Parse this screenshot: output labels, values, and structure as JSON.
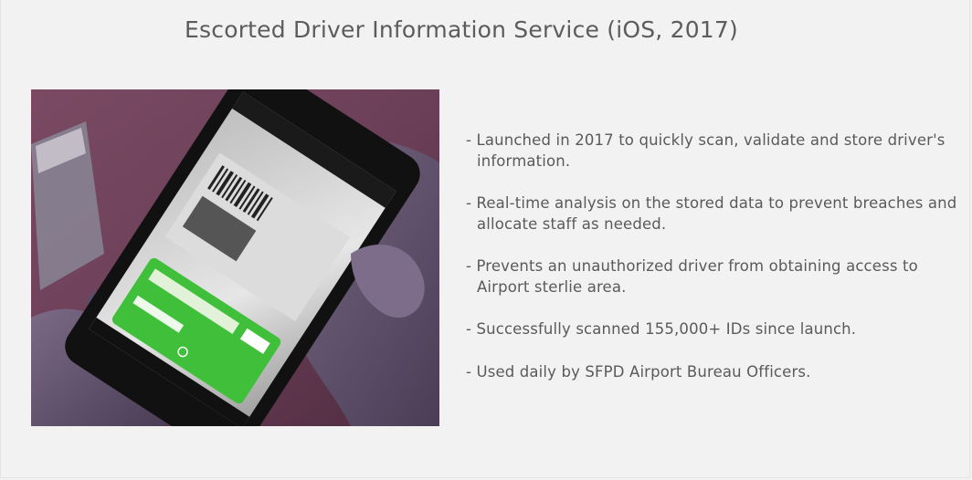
{
  "page": {
    "title": "Escorted Driver Information Service (iOS, 2017)"
  },
  "photo": {
    "description_icon": "phone-scanning-id-photo"
  },
  "bullets": [
    {
      "dash": "- ",
      "text": "Launched in 2017 to quickly scan, validate and store driver's information."
    },
    {
      "dash": "- ",
      "text": "Real-time analysis on the stored data to prevent breaches and allocate staff as needed."
    },
    {
      "dash": "- ",
      "text": "Prevents an unauthorized driver from obtaining access to Airport sterlie area."
    },
    {
      "dash": "- ",
      "text": "Successfully scanned 155,000+ IDs since launch."
    },
    {
      "dash": "- ",
      "text": "Used daily by SFPD Airport Bureau Officers."
    }
  ],
  "colors": {
    "background": "#f2f2f2",
    "text": "#5a5a5a",
    "screen_green": "#3fbf3a"
  }
}
